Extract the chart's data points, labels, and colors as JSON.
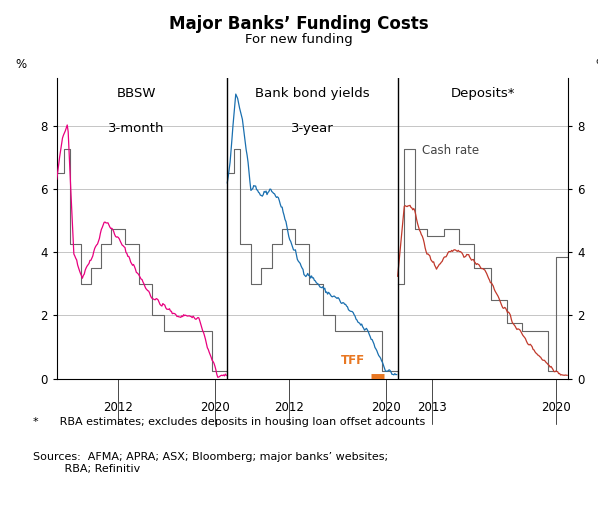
{
  "title": "Major Banks’ Funding Costs",
  "subtitle": "For new funding",
  "ylabel_left": "%",
  "ylabel_right": "%",
  "ylim": [
    0,
    9.5
  ],
  "yticks": [
    0,
    2,
    4,
    6,
    8
  ],
  "footnote1": "*      RBA estimates; excludes deposits in housing loan offset accounts",
  "footnote2": "Sources:  AFMA; APRA; ASX; Bloomberg; major banks’ websites;\n         RBA; Refinitiv",
  "panel1_label_line1": "BBSW",
  "panel1_label_line2": "3-month",
  "panel2_label_line1": "Bank bond yields",
  "panel2_label_line2": "3-year",
  "panel3_label": "Deposits*",
  "cash_rate_label": "Cash rate",
  "tff_label": "TFF",
  "colors": {
    "bbsw": "#e8007f",
    "bond": "#1a6faf",
    "deposit": "#c0392b",
    "cash_rate": "#666666",
    "tff_bar": "#e87722",
    "tff_text": "#e87722",
    "grid": "#bbbbbb",
    "divider": "#000000",
    "panel_label": "#000000"
  },
  "panel1_cash_rate_t": [
    0,
    0.04,
    0.075,
    0.14,
    0.2,
    0.26,
    0.32,
    0.4,
    0.48,
    0.56,
    0.63,
    0.7,
    0.77,
    0.85,
    0.91,
    1.0
  ],
  "panel1_cash_rate_v": [
    6.5,
    7.25,
    4.25,
    3.0,
    3.5,
    4.25,
    4.75,
    4.25,
    3.0,
    2.0,
    1.5,
    1.5,
    1.5,
    1.5,
    0.25,
    0.1
  ],
  "panel2_cash_rate_t": [
    0,
    0.04,
    0.075,
    0.14,
    0.2,
    0.26,
    0.32,
    0.4,
    0.48,
    0.56,
    0.63,
    0.7,
    0.77,
    0.85,
    0.91,
    1.0
  ],
  "panel2_cash_rate_v": [
    6.5,
    7.25,
    4.25,
    3.0,
    3.5,
    4.25,
    4.75,
    4.25,
    3.0,
    2.0,
    1.5,
    1.5,
    1.5,
    1.5,
    0.25,
    0.1
  ],
  "panel3_cash_rate_t": [
    0,
    0.04,
    0.1,
    0.17,
    0.27,
    0.36,
    0.45,
    0.55,
    0.64,
    0.73,
    0.82,
    0.88,
    0.93,
    1.0
  ],
  "panel3_cash_rate_v": [
    3.0,
    7.25,
    4.75,
    4.5,
    4.75,
    4.25,
    3.5,
    2.5,
    1.75,
    1.5,
    1.5,
    0.25,
    3.85,
    4.35
  ]
}
